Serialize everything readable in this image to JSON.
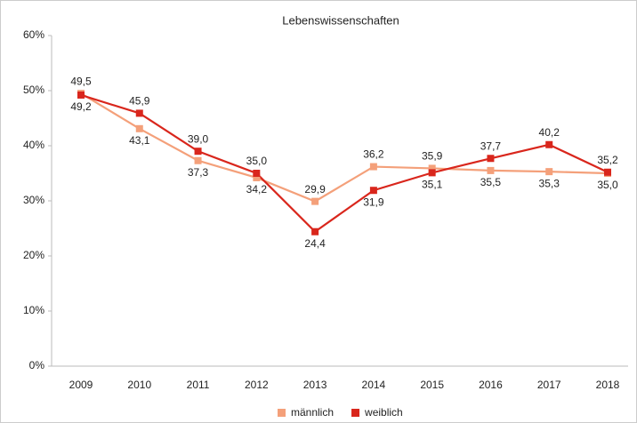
{
  "chart_data": {
    "type": "line",
    "title": "Lebenswissenschaften",
    "categories": [
      "2009",
      "2010",
      "2011",
      "2012",
      "2013",
      "2014",
      "2015",
      "2016",
      "2017",
      "2018"
    ],
    "series": [
      {
        "name": "männlich",
        "color": "#f4a07a",
        "values": [
          49.5,
          43.1,
          37.3,
          34.2,
          29.9,
          36.2,
          35.9,
          35.5,
          35.3,
          35.0
        ],
        "value_labels": [
          "49,5",
          "43,1",
          "37,3",
          "34,2",
          "29,9",
          "36,2",
          "35,9",
          "35,5",
          "35,3",
          "35,0"
        ]
      },
      {
        "name": "weiblich",
        "color": "#d9261c",
        "values": [
          49.2,
          45.9,
          39.0,
          35.0,
          24.4,
          31.9,
          35.1,
          37.7,
          40.2,
          35.2
        ],
        "value_labels": [
          "49,2",
          "45,9",
          "39,0",
          "35,0",
          "24,4",
          "31,9",
          "35,1",
          "37,7",
          "40,2",
          "35,2"
        ]
      }
    ],
    "ylim": [
      0,
      60
    ],
    "yticks": [
      {
        "value": 0,
        "label": "0%"
      },
      {
        "value": 10,
        "label": "10%"
      },
      {
        "value": 20,
        "label": "20%"
      },
      {
        "value": 30,
        "label": "30%"
      },
      {
        "value": 40,
        "label": "40%"
      },
      {
        "value": 50,
        "label": "50%"
      },
      {
        "value": 60,
        "label": "60%"
      }
    ],
    "legend": "bottom"
  }
}
